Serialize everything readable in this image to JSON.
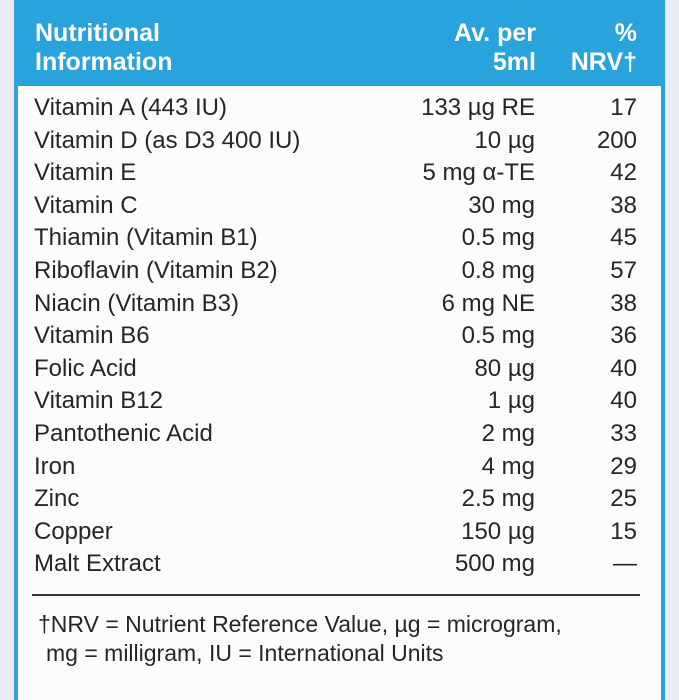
{
  "header": {
    "nutrient": [
      "Nutritional",
      "Information"
    ],
    "amount": [
      "Av. per",
      "5ml"
    ],
    "nrv": [
      "%",
      "NRV†"
    ]
  },
  "table": {
    "rows": [
      [
        "Vitamin A (443 IU)",
        "133 µg RE",
        "17"
      ],
      [
        "Vitamin D (as D3 400 IU)",
        "10 µg",
        "200"
      ],
      [
        "Vitamin E",
        "5 mg α-TE",
        "42"
      ],
      [
        "Vitamin C",
        "30 mg",
        "38"
      ],
      [
        "Thiamin (Vitamin B1)",
        "0.5 mg",
        "45"
      ],
      [
        "Riboflavin (Vitamin B2)",
        "0.8 mg",
        "57"
      ],
      [
        "Niacin (Vitamin B3)",
        "6 mg NE",
        "38"
      ],
      [
        "Vitamin B6",
        "0.5 mg",
        "36"
      ],
      [
        "Folic Acid",
        "80 µg",
        "40"
      ],
      [
        "Vitamin B12",
        "1 µg",
        "40"
      ],
      [
        "Pantothenic Acid",
        "2 mg",
        "33"
      ],
      [
        "Iron",
        "4 mg",
        "29"
      ],
      [
        "Zinc",
        "2.5 mg",
        "25"
      ],
      [
        "Copper",
        "150 µg",
        "15"
      ],
      [
        "Malt Extract",
        "500 mg",
        "—"
      ]
    ]
  },
  "footnote": [
    "†NRV = Nutrient Reference Value, µg = microgram,",
    "mg = milligram, IU = International Units"
  ]
}
